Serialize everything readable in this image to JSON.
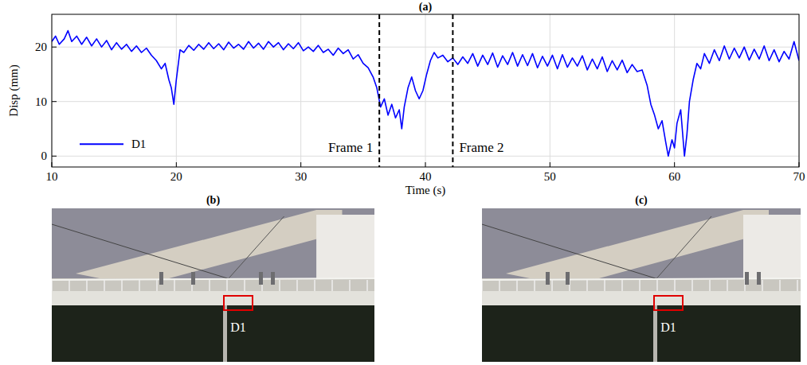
{
  "chart_data": {
    "type": "line",
    "title": "(a)",
    "x_label": "Time (s)",
    "y_label": "Disp (mm)",
    "xlim": [
      10,
      70
    ],
    "xticks": [
      10,
      20,
      30,
      40,
      50,
      60,
      70
    ],
    "ylim": [
      -2,
      26
    ],
    "yticks": [
      0,
      10,
      20
    ],
    "grid": true,
    "legend": "lower left",
    "annotations": [
      {
        "x": 36.3,
        "text": "Frame 1"
      },
      {
        "x": 42.2,
        "text": "Frame 2"
      }
    ],
    "x": [
      10,
      10.3,
      10.6,
      11,
      11.3,
      11.6,
      12,
      12.4,
      12.8,
      13.2,
      13.6,
      14,
      14.4,
      14.8,
      15.2,
      15.6,
      16,
      16.4,
      16.8,
      17.2,
      17.6,
      18,
      18.4,
      18.8,
      19.1,
      19.4,
      19.6,
      19.8,
      20,
      20.3,
      20.6,
      21,
      21.4,
      21.8,
      22.2,
      22.6,
      23,
      23.4,
      23.8,
      24.2,
      24.6,
      25,
      25.4,
      25.8,
      26.2,
      26.6,
      27,
      27.4,
      27.8,
      28.2,
      28.6,
      29,
      29.4,
      29.8,
      30.2,
      30.6,
      31,
      31.4,
      31.8,
      32.2,
      32.6,
      33,
      33.4,
      33.8,
      34.2,
      34.6,
      35,
      35.4,
      35.8,
      36.1,
      36.4,
      36.7,
      37,
      37.3,
      37.6,
      37.9,
      38.1,
      38.3,
      38.6,
      38.9,
      39.2,
      39.5,
      39.8,
      40.1,
      40.4,
      40.7,
      41,
      41.4,
      41.8,
      42.2,
      42.6,
      43,
      43.4,
      43.8,
      44.2,
      44.6,
      45,
      45.4,
      45.8,
      46.2,
      46.6,
      47,
      47.4,
      47.8,
      48.2,
      48.6,
      49,
      49.4,
      49.8,
      50.2,
      50.6,
      51,
      51.4,
      51.8,
      52.2,
      52.6,
      53,
      53.4,
      53.8,
      54.2,
      54.6,
      55,
      55.4,
      55.8,
      56.2,
      56.6,
      57,
      57.4,
      57.8,
      58.1,
      58.4,
      58.7,
      59,
      59.3,
      59.5,
      59.8,
      60,
      60.2,
      60.5,
      60.8,
      61,
      61.2,
      61.5,
      61.8,
      62.1,
      62.4,
      62.8,
      63.2,
      63.6,
      64,
      64.4,
      64.8,
      65.2,
      65.6,
      66,
      66.4,
      66.8,
      67.2,
      67.6,
      68,
      68.4,
      68.8,
      69.2,
      69.6,
      70
    ],
    "series": [
      {
        "name": "D1",
        "color": "#0000ff",
        "line_style": "solid",
        "values": [
          21.0,
          22.0,
          20.5,
          21.5,
          23.0,
          21.0,
          22.0,
          20.5,
          21.8,
          20.2,
          21.5,
          20.0,
          21.2,
          19.5,
          20.8,
          19.6,
          20.5,
          19.2,
          20.2,
          19.0,
          19.8,
          18.5,
          17.5,
          16.0,
          17.0,
          14.0,
          12.5,
          9.5,
          14.0,
          19.5,
          19.0,
          20.3,
          19.4,
          20.5,
          19.6,
          20.8,
          19.7,
          20.6,
          19.5,
          20.9,
          19.8,
          20.5,
          19.6,
          21.0,
          19.8,
          20.7,
          19.6,
          21.0,
          20.0,
          20.8,
          19.5,
          20.6,
          19.7,
          20.8,
          19.3,
          20.0,
          19.2,
          20.3,
          19.0,
          19.6,
          18.5,
          19.8,
          18.8,
          19.5,
          17.8,
          18.6,
          17.0,
          16.2,
          14.5,
          12.5,
          9.0,
          10.5,
          7.5,
          9.5,
          7.0,
          8.5,
          5.0,
          9.0,
          12.5,
          14.5,
          12.0,
          10.5,
          12.0,
          15.0,
          17.5,
          19.0,
          18.0,
          18.5,
          17.3,
          18.0,
          16.8,
          18.2,
          17.0,
          18.8,
          16.5,
          18.5,
          16.8,
          18.9,
          16.3,
          18.4,
          16.8,
          19.0,
          16.5,
          18.6,
          16.6,
          18.8,
          16.2,
          18.3,
          16.5,
          18.5,
          16.0,
          18.6,
          16.3,
          18.0,
          16.5,
          18.4,
          15.8,
          17.8,
          16.0,
          18.2,
          15.5,
          17.5,
          15.8,
          17.6,
          15.3,
          16.8,
          15.5,
          15.8,
          13.0,
          9.5,
          7.5,
          5.0,
          6.5,
          2.5,
          0.0,
          3.0,
          1.5,
          6.0,
          8.5,
          0.0,
          4.0,
          10.0,
          14.0,
          17.0,
          16.0,
          18.8,
          17.0,
          19.5,
          17.5,
          20.2,
          17.8,
          19.8,
          18.0,
          20.0,
          17.6,
          19.6,
          17.8,
          20.2,
          17.5,
          19.5,
          17.3,
          19.2,
          17.8,
          21.0,
          17.5
        ]
      }
    ]
  },
  "photos": [
    {
      "label": "(b)",
      "marker_label": "D1"
    },
    {
      "label": "(c)",
      "marker_label": "D1"
    }
  ]
}
